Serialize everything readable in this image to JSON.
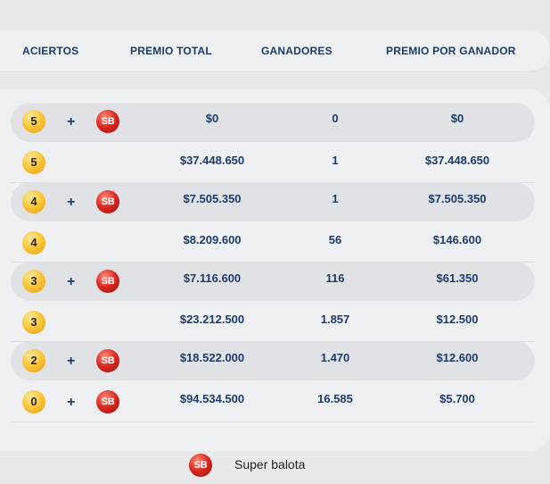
{
  "header": {
    "aciertos": "ACIERTOS",
    "premio_total": "PREMIO TOTAL",
    "ganadores": "GANADORES",
    "premio_por_ganador": "PREMIO POR GANADOR"
  },
  "plus_symbol": "+",
  "super_ball_text": "SB",
  "rows": [
    {
      "balls": "5",
      "super": true,
      "premio_total": "$0",
      "ganadores": "0",
      "premio_por_ganador": "$0"
    },
    {
      "balls": "5",
      "super": false,
      "premio_total": "$37.448.650",
      "ganadores": "1",
      "premio_por_ganador": "$37.448.650"
    },
    {
      "balls": "4",
      "super": true,
      "premio_total": "$7.505.350",
      "ganadores": "1",
      "premio_por_ganador": "$7.505.350"
    },
    {
      "balls": "4",
      "super": false,
      "premio_total": "$8.209.600",
      "ganadores": "56",
      "premio_por_ganador": "$146.600"
    },
    {
      "balls": "3",
      "super": true,
      "premio_total": "$7.116.600",
      "ganadores": "116",
      "premio_por_ganador": "$61.350"
    },
    {
      "balls": "3",
      "super": false,
      "premio_total": "$23.212.500",
      "ganadores": "1.857",
      "premio_por_ganador": "$12.500"
    },
    {
      "balls": "2",
      "super": true,
      "premio_total": "$18.522.000",
      "ganadores": "1.470",
      "premio_por_ganador": "$12.600"
    },
    {
      "balls": "0",
      "super": true,
      "premio_total": "$94.534.500",
      "ganadores": "16.585",
      "premio_por_ganador": "$5.700"
    }
  ],
  "legend": {
    "ball_text": "SB",
    "label": "Super balota"
  },
  "colors": {
    "text_primary": "#1d3c6b",
    "ball_yellow": "#fbc83a",
    "ball_red": "#d8261c",
    "row_shaded": "#e0e2e6",
    "panel": "#eef0f2"
  }
}
